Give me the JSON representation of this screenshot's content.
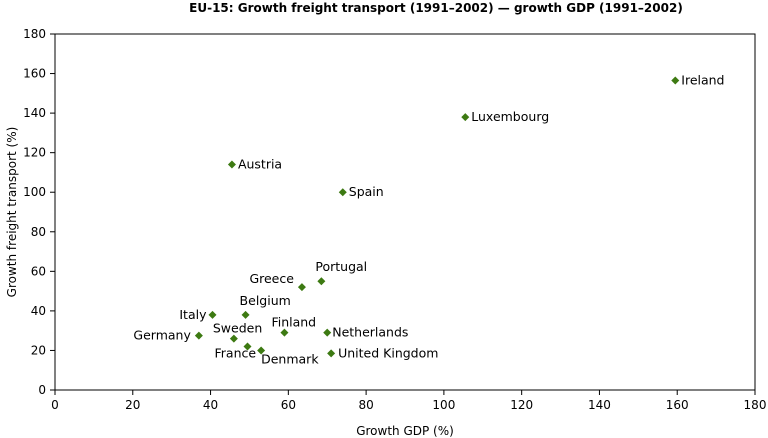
{
  "chart_data": {
    "type": "scatter",
    "title": "EU-15: Growth freight transport (1991–2002) — growth GDP (1991–2002)",
    "xlabel": "Growth GDP (%)",
    "ylabel": "Growth freight transport (%)",
    "xlim": [
      0,
      180
    ],
    "ylim": [
      0,
      180
    ],
    "xticks": [
      0,
      20,
      40,
      60,
      80,
      100,
      120,
      140,
      160,
      180
    ],
    "yticks": [
      0,
      20,
      40,
      60,
      80,
      100,
      120,
      140,
      160,
      180
    ],
    "grid": false,
    "legend": "none",
    "marker_color": "#3d7a12",
    "points": [
      {
        "label": "Ireland",
        "x": 159.5,
        "y": 156.5
      },
      {
        "label": "Luxembourg",
        "x": 105.5,
        "y": 138
      },
      {
        "label": "Austria",
        "x": 45.5,
        "y": 114
      },
      {
        "label": "Spain",
        "x": 74,
        "y": 100
      },
      {
        "label": "Portugal",
        "x": 68.5,
        "y": 55
      },
      {
        "label": "Greece",
        "x": 63.5,
        "y": 52
      },
      {
        "label": "Italy",
        "x": 40.5,
        "y": 38
      },
      {
        "label": "Belgium",
        "x": 49,
        "y": 38
      },
      {
        "label": "Finland",
        "x": 59,
        "y": 29
      },
      {
        "label": "Netherlands",
        "x": 70,
        "y": 29
      },
      {
        "label": "Germany",
        "x": 37,
        "y": 27.5
      },
      {
        "label": "Sweden",
        "x": 46,
        "y": 26
      },
      {
        "label": "France",
        "x": 49.5,
        "y": 22
      },
      {
        "label": "Denmark",
        "x": 53,
        "y": 20
      },
      {
        "label": "United Kingdom",
        "x": 71,
        "y": 18.5
      }
    ]
  }
}
